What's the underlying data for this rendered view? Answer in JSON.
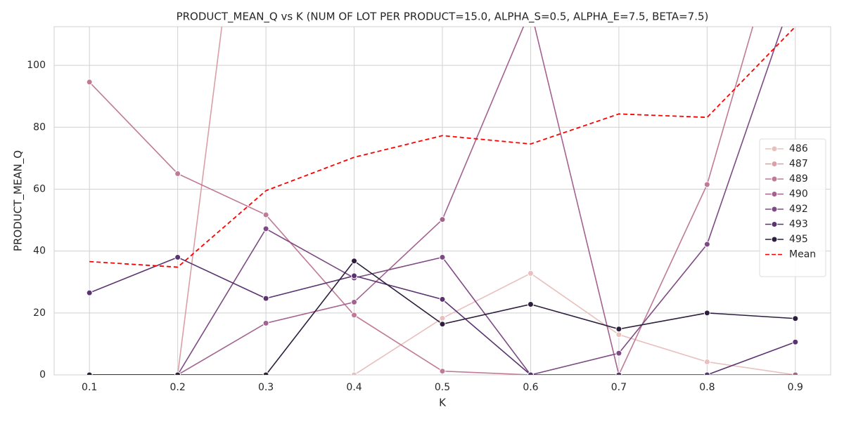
{
  "chart_data": {
    "type": "line",
    "title": "PRODUCT_MEAN_Q vs K (NUM OF LOT PER PRODUCT=15.0, ALPHA_S=0.5, ALPHA_E=7.5, BETA=7.5)",
    "x_label": "K",
    "y_label": "PRODUCT_MEAN_Q",
    "x": [
      0.1,
      0.2,
      0.3,
      0.4,
      0.5,
      0.6,
      0.7,
      0.8,
      0.9
    ],
    "xlim": [
      0.06,
      0.94
    ],
    "ylim": [
      0,
      112.5
    ],
    "xticks": [
      0.1,
      0.2,
      0.3,
      0.4,
      0.5,
      0.6,
      0.7,
      0.8,
      0.9
    ],
    "yticks": [
      0,
      20,
      40,
      60,
      80,
      100
    ],
    "grid": true,
    "legend": "right",
    "series": [
      {
        "name": "486",
        "color": "#e8c0bd",
        "marker": true,
        "dashed": false,
        "values": [
          0,
          0,
          0,
          0,
          18.3,
          32.8,
          13,
          4.2,
          0
        ]
      },
      {
        "name": "487",
        "color": "#d9a0a8",
        "marker": true,
        "dashed": false,
        "values": [
          0,
          0,
          225,
          null,
          null,
          null,
          null,
          null,
          null
        ]
      },
      {
        "name": "489",
        "color": "#c07a97",
        "marker": true,
        "dashed": false,
        "values": [
          94.6,
          65,
          51.7,
          19.3,
          1.2,
          0,
          0,
          61.5,
          160
        ]
      },
      {
        "name": "490",
        "color": "#a3628f",
        "marker": true,
        "dashed": false,
        "values": [
          0,
          0,
          16.7,
          23.5,
          50.2,
          118,
          0,
          0,
          0
        ]
      },
      {
        "name": "492",
        "color": "#7e4a84",
        "marker": true,
        "dashed": false,
        "values": [
          0,
          0,
          47.2,
          31.3,
          38,
          0,
          7,
          42.2,
          125
        ]
      },
      {
        "name": "493",
        "color": "#5a3470",
        "marker": true,
        "dashed": false,
        "values": [
          26.5,
          38,
          24.7,
          32,
          24.4,
          0,
          0,
          0,
          10.6
        ]
      },
      {
        "name": "495",
        "color": "#2d1e3e",
        "marker": true,
        "dashed": false,
        "values": [
          0,
          0,
          0,
          36.8,
          16.4,
          22.8,
          14.8,
          20,
          18.2
        ]
      },
      {
        "name": "Mean",
        "color": "#ff0000",
        "marker": false,
        "dashed": true,
        "values": [
          36.6,
          34.8,
          59.5,
          70.3,
          77.3,
          74.6,
          84.3,
          83.2,
          112.5
        ]
      }
    ]
  }
}
